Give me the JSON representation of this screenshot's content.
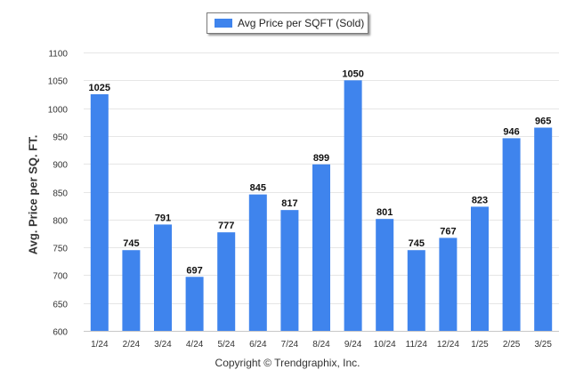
{
  "chart_data": {
    "type": "bar",
    "categories": [
      "1/24",
      "2/24",
      "3/24",
      "4/24",
      "5/24",
      "6/24",
      "7/24",
      "8/24",
      "9/24",
      "10/24",
      "11/24",
      "12/24",
      "1/25",
      "2/25",
      "3/25"
    ],
    "series": [
      {
        "name": "Avg Price per SQFT (Sold)",
        "values": [
          1025,
          745,
          791,
          697,
          777,
          845,
          817,
          899,
          1050,
          801,
          745,
          767,
          823,
          946,
          965
        ],
        "color": "#3f84ed"
      }
    ],
    "ylabel": "Avg. Price per SQ. FT.",
    "xlabel": "",
    "ylim": [
      600,
      1100
    ],
    "yticks": [
      600,
      650,
      700,
      750,
      800,
      850,
      900,
      950,
      1000,
      1050,
      1100
    ],
    "grid": true,
    "legend_position": "top-center",
    "data_labels": true
  },
  "footer": {
    "copyright": "Copyright © Trendgraphix, Inc."
  }
}
